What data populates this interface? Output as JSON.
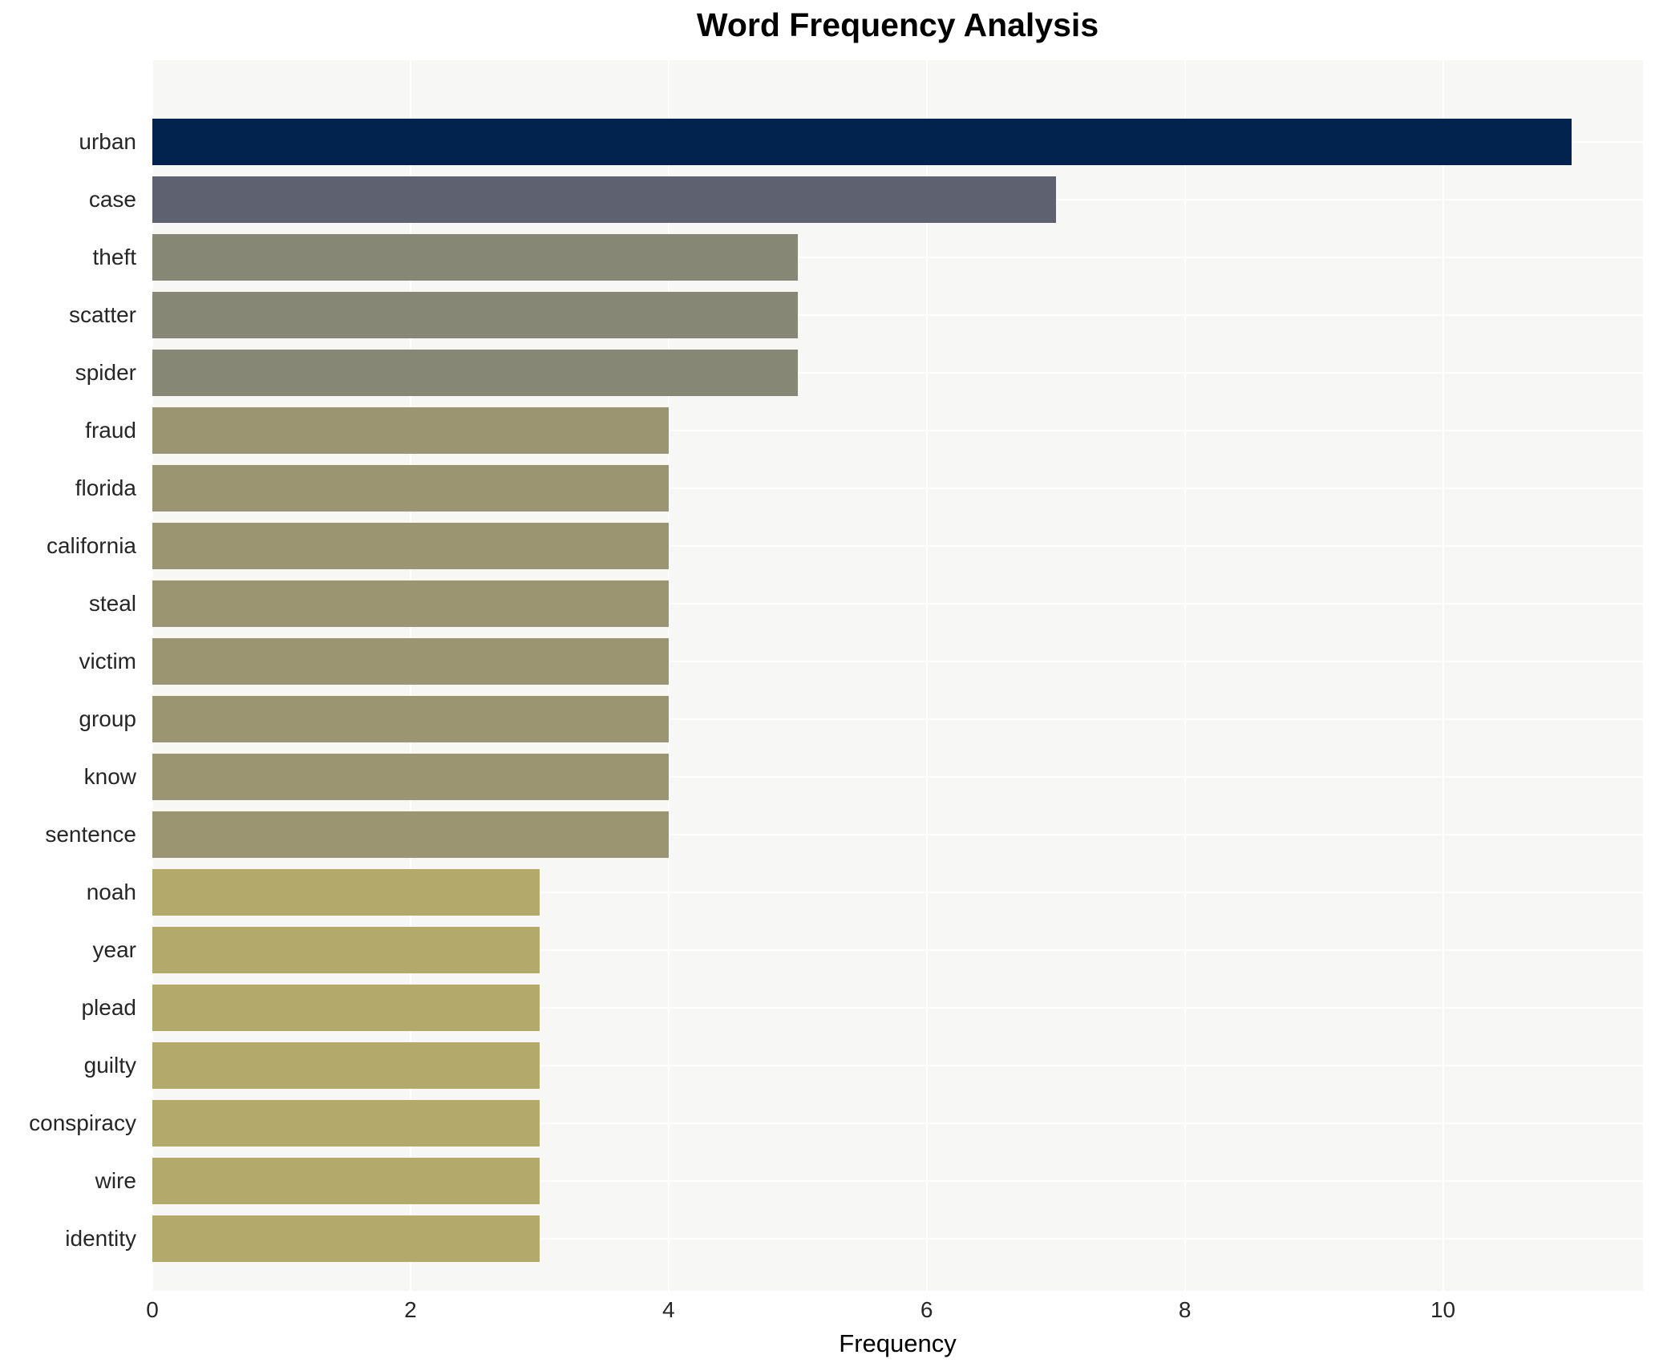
{
  "chart_data": {
    "type": "bar",
    "orientation": "horizontal",
    "title": "Word Frequency Analysis",
    "xlabel": "Frequency",
    "ylabel": "",
    "categories": [
      "urban",
      "case",
      "theft",
      "scatter",
      "spider",
      "fraud",
      "florida",
      "california",
      "steal",
      "victim",
      "group",
      "know",
      "sentence",
      "noah",
      "year",
      "plead",
      "guilty",
      "conspiracy",
      "wire",
      "identity"
    ],
    "values": [
      11,
      7,
      5,
      5,
      5,
      4,
      4,
      4,
      4,
      4,
      4,
      4,
      4,
      3,
      3,
      3,
      3,
      3,
      3,
      3
    ],
    "bar_colors": [
      "#02234d",
      "#5d6170",
      "#878775",
      "#878775",
      "#878775",
      "#9c9572",
      "#9c9572",
      "#9c9572",
      "#9c9572",
      "#9c9572",
      "#9c9572",
      "#9c9572",
      "#9c9572",
      "#b2a96b",
      "#b2a96b",
      "#b2a96b",
      "#b2a96b",
      "#b2a96b",
      "#b2a96b",
      "#b2a96b"
    ],
    "xticks": [
      0,
      2,
      4,
      6,
      8,
      10
    ],
    "xlim": [
      0,
      11.55
    ],
    "grid": true,
    "legend": "none",
    "plot_background": "#f7f7f5",
    "grid_color": "#ffffff",
    "tick_label_color": "#262626",
    "title_color": "#000000"
  }
}
